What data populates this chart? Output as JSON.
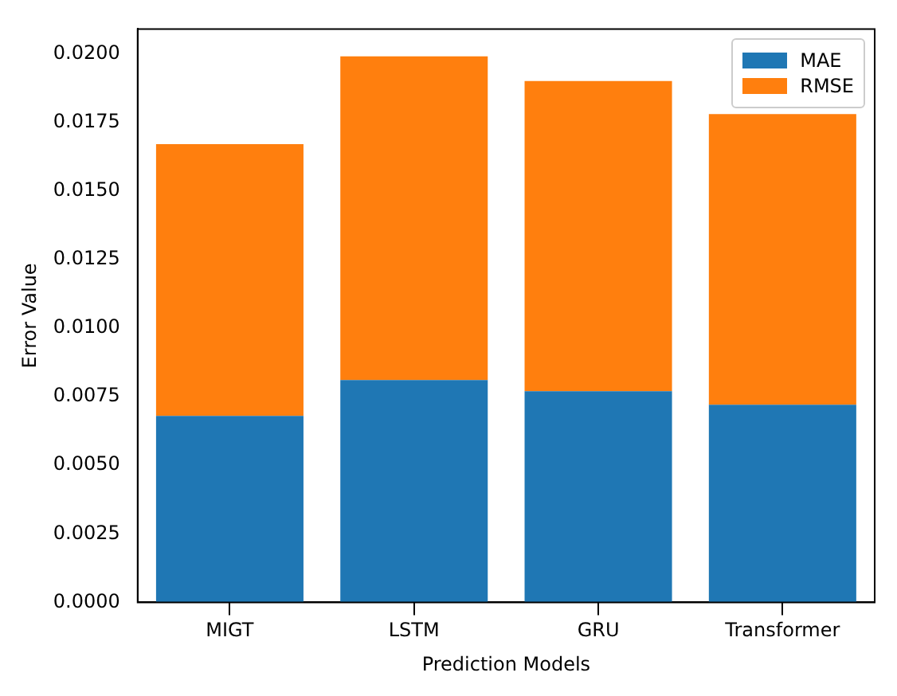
{
  "chart_data": {
    "type": "bar",
    "stacked": true,
    "xlabel": "Prediction Models",
    "ylabel": "Error Value",
    "categories": [
      "MIGT",
      "LSTM",
      "GRU",
      "Transformer"
    ],
    "series": [
      {
        "name": "MAE",
        "color": "#1f77b4",
        "values": [
          0.0068,
          0.0081,
          0.0077,
          0.0072
        ]
      },
      {
        "name": "RMSE",
        "color": "#ff7f0e",
        "values": [
          0.0099,
          0.0118,
          0.0113,
          0.0106
        ]
      }
    ],
    "ylim": [
      0,
      0.0209
    ],
    "yticks": [
      {
        "value": 0,
        "label": "0.0000"
      },
      {
        "value": 0.0025,
        "label": "0.0025"
      },
      {
        "value": 0.005,
        "label": "0.0050"
      },
      {
        "value": 0.0075,
        "label": "0.0075"
      },
      {
        "value": 0.01,
        "label": "0.0100"
      },
      {
        "value": 0.0125,
        "label": "0.0125"
      },
      {
        "value": 0.015,
        "label": "0.0150"
      },
      {
        "value": 0.0175,
        "label": "0.0175"
      },
      {
        "value": 0.02,
        "label": "0.0200"
      }
    ],
    "grid": false,
    "legend": "top right"
  }
}
